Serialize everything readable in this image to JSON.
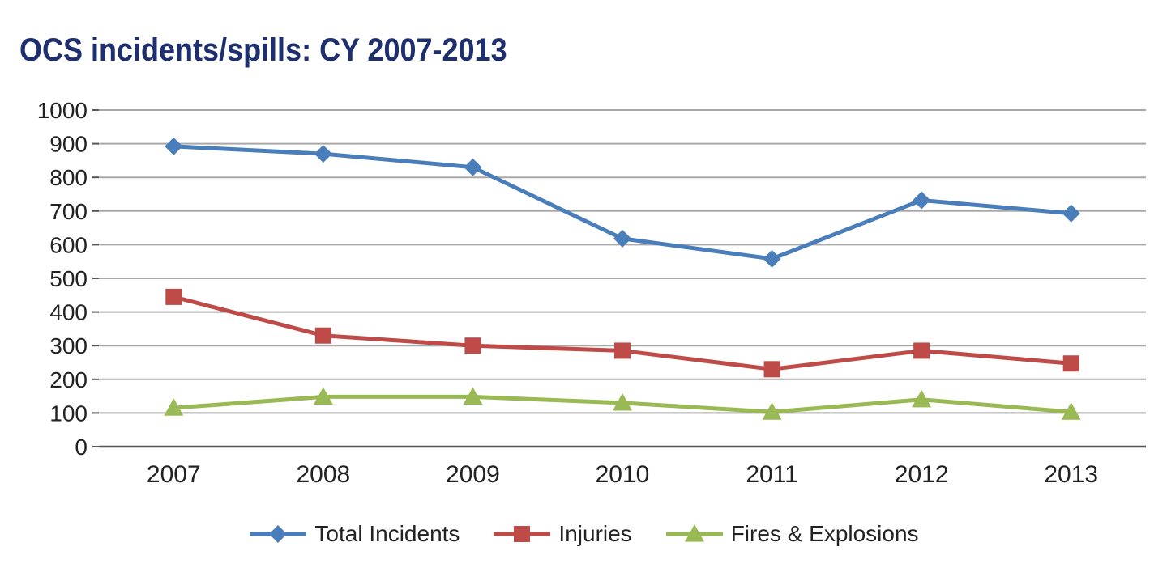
{
  "chart_data": {
    "type": "line",
    "title": "OCS incidents/spills: CY 2007-2013",
    "categories": [
      "2007",
      "2008",
      "2009",
      "2010",
      "2011",
      "2012",
      "2013"
    ],
    "ylim": [
      0,
      1000
    ],
    "yticks": [
      0,
      100,
      200,
      300,
      400,
      500,
      600,
      700,
      800,
      900,
      1000
    ],
    "grid": true,
    "legend_position": "bottom",
    "series": [
      {
        "name": "Total Incidents",
        "values": [
          892,
          870,
          830,
          618,
          558,
          732,
          693
        ],
        "color": "#4a7ebb",
        "marker": "diamond"
      },
      {
        "name": "Injuries",
        "values": [
          445,
          330,
          300,
          285,
          230,
          285,
          247
        ],
        "color": "#be4b48",
        "marker": "square"
      },
      {
        "name": "Fires & Explosions",
        "values": [
          115,
          148,
          148,
          130,
          103,
          140,
          103
        ],
        "color": "#98b954",
        "marker": "triangle"
      }
    ]
  }
}
